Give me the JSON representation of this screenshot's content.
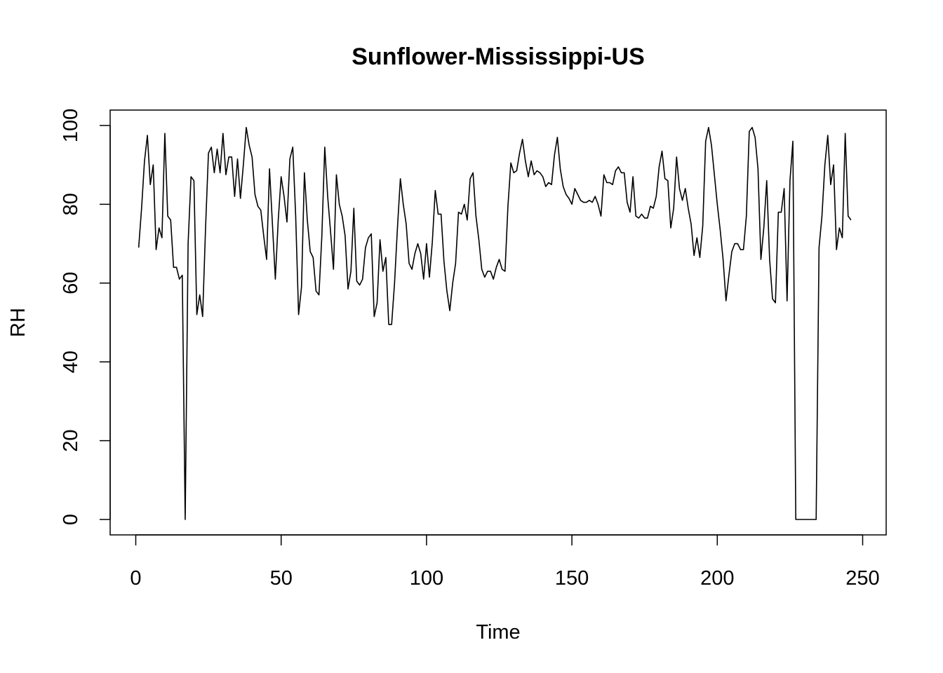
{
  "chart_data": {
    "type": "line",
    "title": "Sunflower-Mississippi-US",
    "xlabel": "Time",
    "ylabel": "RH",
    "xlim": [
      1,
      248
    ],
    "ylim": [
      0,
      100
    ],
    "x_ticks": [
      0,
      50,
      100,
      150,
      200,
      250
    ],
    "y_ticks": [
      0,
      20,
      40,
      60,
      80,
      100
    ],
    "x_tick_labels": [
      "0",
      "50",
      "100",
      "150",
      "200",
      "250"
    ],
    "y_tick_labels": [
      "0",
      "20",
      "40",
      "60",
      "80",
      "100"
    ],
    "grid": false,
    "line_color": "#000000",
    "series": [
      {
        "x_start": 1,
        "x_step": 1,
        "values": [
          69,
          79,
          91,
          97.5,
          85,
          90,
          68.5,
          74,
          71.5,
          98,
          77,
          76,
          64,
          64,
          61,
          62,
          0,
          70,
          87,
          86,
          52,
          57,
          51.5,
          74,
          93,
          94.5,
          88,
          94,
          88,
          98,
          87.5,
          92,
          92,
          82,
          91.5,
          81.5,
          90,
          99.5,
          95,
          92,
          82.5,
          79.5,
          78.5,
          72,
          66,
          89,
          75,
          61,
          76,
          87,
          82,
          75.5,
          91.5,
          94.5,
          77,
          52,
          59,
          88,
          76,
          68,
          66.5,
          58,
          57,
          72,
          94.5,
          82,
          73,
          63.5,
          87.5,
          80,
          77,
          72,
          58.5,
          63,
          79,
          60.5,
          59.5,
          61,
          69,
          71.5,
          72.5,
          51.5,
          55,
          71,
          63,
          66.5,
          49.5,
          49.5,
          60,
          74,
          86.5,
          80,
          75,
          65,
          63.5,
          67.5,
          70,
          67.5,
          61,
          70,
          61.5,
          70.5,
          83.5,
          77.5,
          77.5,
          65.5,
          58,
          53,
          60,
          65,
          78,
          77.5,
          80,
          76,
          86.5,
          88,
          77,
          71,
          63.5,
          61.5,
          63,
          63,
          61,
          64,
          66,
          63.5,
          63,
          79.5,
          90.5,
          88,
          88.5,
          93,
          96.5,
          91,
          87,
          91,
          87.5,
          88.5,
          88,
          87,
          84.5,
          85.5,
          85,
          92.5,
          97,
          89,
          84.5,
          82.5,
          81.5,
          80,
          84,
          82.5,
          81,
          80.5,
          80.5,
          81,
          80.5,
          82,
          80,
          77,
          87.5,
          85.5,
          85.5,
          85,
          88.5,
          89.5,
          88,
          88,
          80.5,
          78,
          87,
          77,
          76.5,
          77.5,
          76.5,
          76.5,
          79.5,
          79,
          82,
          89.5,
          93.5,
          86.5,
          86,
          74,
          79,
          92,
          84,
          81,
          84,
          79,
          75,
          67,
          71.5,
          66.5,
          74.5,
          96,
          99.5,
          95,
          87.5,
          80,
          73.5,
          66,
          55.5,
          62,
          68,
          70,
          70,
          68.5,
          68.5,
          77,
          98.5,
          99.5,
          97,
          89,
          66,
          74,
          86,
          66,
          56,
          55,
          78,
          78,
          84,
          55.5,
          86,
          96,
          0,
          0,
          0,
          0,
          0,
          0,
          0,
          0,
          69,
          77,
          90,
          97.5,
          85,
          90,
          68.5,
          74,
          71.5,
          98,
          77,
          76
        ]
      }
    ]
  }
}
